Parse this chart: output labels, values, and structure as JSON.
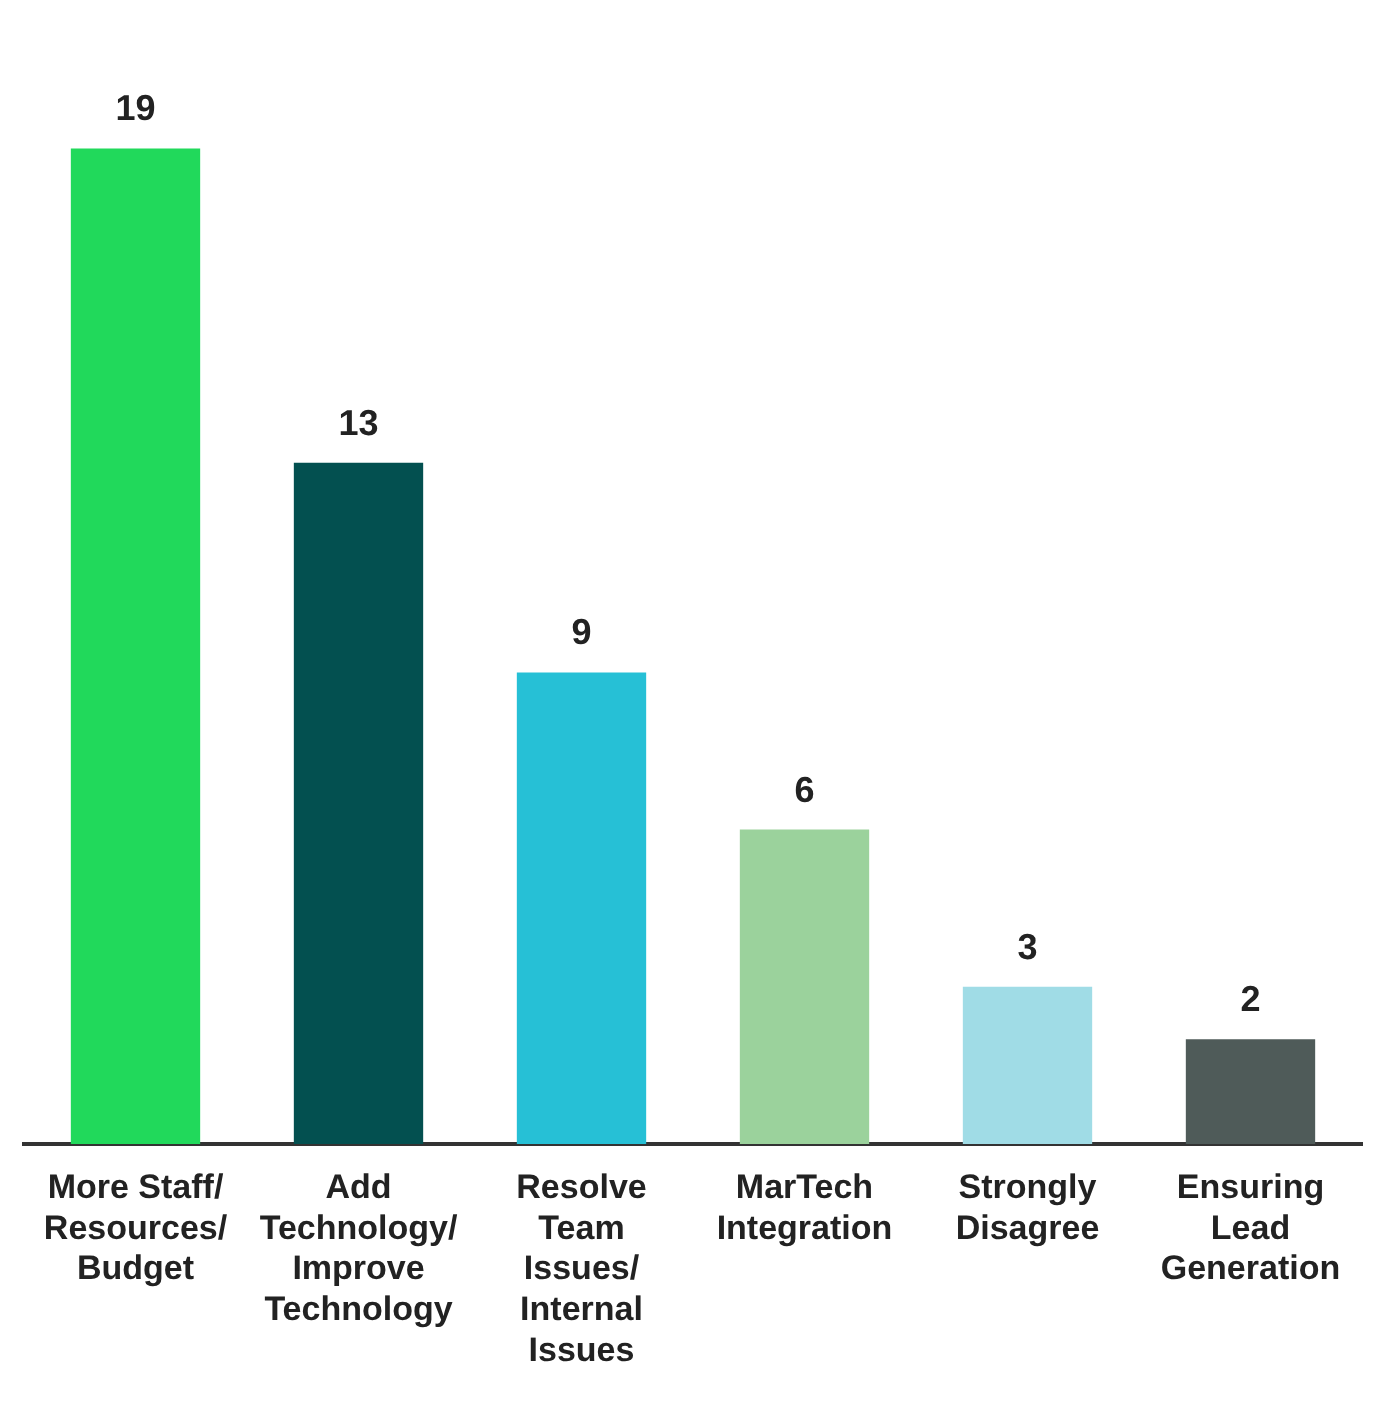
{
  "chart_data": {
    "type": "bar",
    "categories": [
      "More Staff/\nResources/\nBudget",
      "Add\nTechnology/\nImprove\nTechnology",
      "Resolve\nTeam\nIssues/\nInternal\nIssues",
      "MarTech\nIntegration",
      "Strongly\nDisagree",
      "Ensuring\nLead\nGeneration"
    ],
    "values": [
      19,
      13,
      9,
      6,
      3,
      2
    ],
    "colors": [
      "#21d95b",
      "#035050",
      "#26c0d6",
      "#9bd29c",
      "#a0dce6",
      "#4f5b59"
    ],
    "data_labels": true,
    "grid": false,
    "legend": false
  }
}
